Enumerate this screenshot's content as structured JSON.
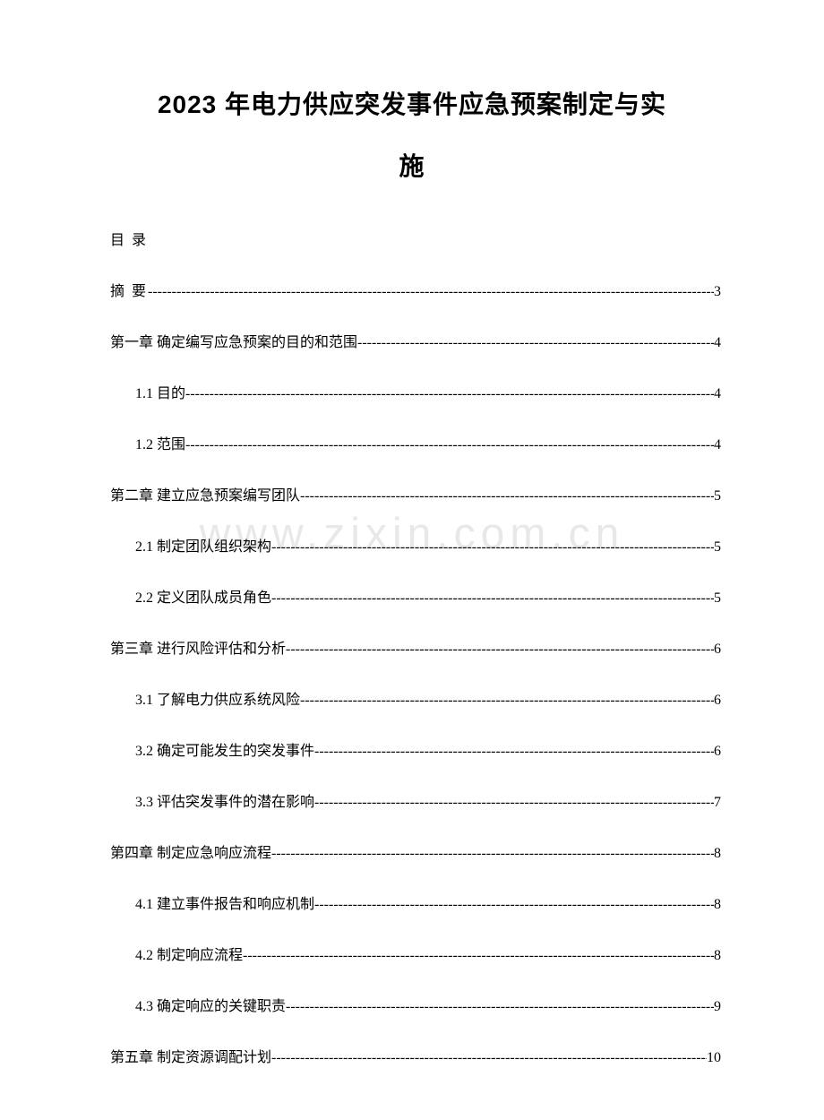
{
  "title": {
    "line1": "2023 年电力供应突发事件应急预案制定与实",
    "line2": "施"
  },
  "toc_header": "目 录",
  "watermark": "www.zixin.com.cn",
  "entries": [
    {
      "level": 1,
      "label": "摘 要",
      "spaced": true,
      "page": "3"
    },
    {
      "level": 1,
      "label": "第一章 确定编写应急预案的目的和范围 ",
      "page": "4"
    },
    {
      "level": 2,
      "label": "1.1 目的",
      "page": "4"
    },
    {
      "level": 2,
      "label": "1.2 范围",
      "page": "4"
    },
    {
      "level": 1,
      "label": "第二章 建立应急预案编写团队 ",
      "page": "5"
    },
    {
      "level": 2,
      "label": "2.1 制定团队组织架构",
      "page": "5"
    },
    {
      "level": 2,
      "label": "2.2 定义团队成员角色",
      "page": "5"
    },
    {
      "level": 1,
      "label": "第三章 进行风险评估和分析 ",
      "page": "6"
    },
    {
      "level": 2,
      "label": "3.1 了解电力供应系统风险",
      "page": "6"
    },
    {
      "level": 2,
      "label": "3.2 确定可能发生的突发事件",
      "page": "6"
    },
    {
      "level": 2,
      "label": "3.3 评估突发事件的潜在影响",
      "page": "7"
    },
    {
      "level": 1,
      "label": "第四章 制定应急响应流程 ",
      "page": "8"
    },
    {
      "level": 2,
      "label": "4.1 建立事件报告和响应机制",
      "page": "8"
    },
    {
      "level": 2,
      "label": "4.2 制定响应流程",
      "page": "8"
    },
    {
      "level": 2,
      "label": "4.3 确定响应的关键职责",
      "page": "9"
    },
    {
      "level": 1,
      "label": "第五章 制定资源调配计划 ",
      "page": "10"
    }
  ],
  "leader": "----------------------------------------------------------------------------------------------------------------------------------"
}
